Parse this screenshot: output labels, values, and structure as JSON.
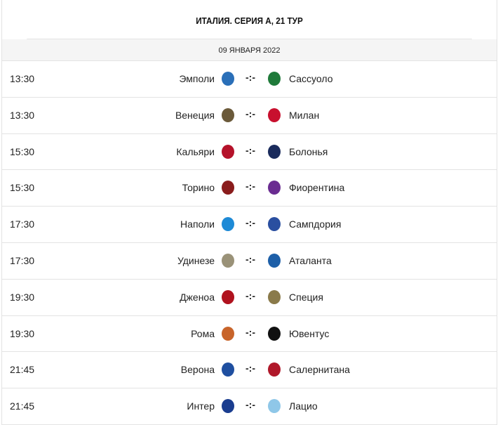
{
  "title": "ИТАЛИЯ. СЕРИЯ А, 21 ТУР",
  "date": "09 ЯНВАРЯ 2022",
  "matches": [
    {
      "time": "13:30",
      "home": "Эмполи",
      "away": "Сассуоло",
      "score": "-:-",
      "home_color": "#2a6fb8",
      "away_color": "#1f7a3a"
    },
    {
      "time": "13:30",
      "home": "Венеция",
      "away": "Милан",
      "score": "-:-",
      "home_color": "#6b5a3a",
      "away_color": "#c8102e"
    },
    {
      "time": "15:30",
      "home": "Кальяри",
      "away": "Болонья",
      "score": "-:-",
      "home_color": "#b5122a",
      "away_color": "#1a2b5c"
    },
    {
      "time": "15:30",
      "home": "Торино",
      "away": "Фиорентина",
      "score": "-:-",
      "home_color": "#8a1c1c",
      "away_color": "#6a2c91"
    },
    {
      "time": "17:30",
      "home": "Наполи",
      "away": "Сампдория",
      "score": "-:-",
      "home_color": "#1e8ad6",
      "away_color": "#2a4fa0"
    },
    {
      "time": "17:30",
      "home": "Удинезе",
      "away": "Аталанта",
      "score": "-:-",
      "home_color": "#9a9278",
      "away_color": "#1d5fa8"
    },
    {
      "time": "19:30",
      "home": "Дженоа",
      "away": "Специя",
      "score": "-:-",
      "home_color": "#b0121e",
      "away_color": "#8a7a4a"
    },
    {
      "time": "19:30",
      "home": "Рома",
      "away": "Ювентус",
      "score": "-:-",
      "home_color": "#c8642a",
      "away_color": "#111111"
    },
    {
      "time": "21:45",
      "home": "Верона",
      "away": "Салернитана",
      "score": "-:-",
      "home_color": "#1f4fa0",
      "away_color": "#b0182a"
    },
    {
      "time": "21:45",
      "home": "Интер",
      "away": "Лацио",
      "score": "-:-",
      "home_color": "#1a3d8f",
      "away_color": "#8fc7e8"
    }
  ]
}
